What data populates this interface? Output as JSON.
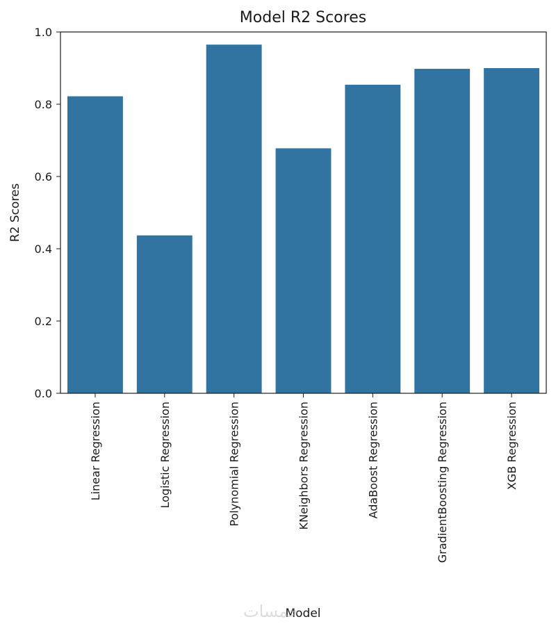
{
  "watermark": "خمسات",
  "chart_data": {
    "type": "bar",
    "title": "Model R2 Scores",
    "xlabel": "Model",
    "ylabel": "R2 Scores",
    "categories": [
      "Linear Regression",
      "Logistic Regression",
      "Polynomial Regression",
      "KNeighbors Regression",
      "AdaBoost Regression",
      "GradientBoosting Regression",
      "XGB Regression"
    ],
    "values": [
      0.822,
      0.437,
      0.965,
      0.678,
      0.854,
      0.898,
      0.9
    ],
    "ylim": [
      0,
      1.0
    ],
    "yticks": [
      0.0,
      0.2,
      0.4,
      0.6,
      0.8,
      1.0
    ],
    "ytick_labels": [
      "0.0",
      "0.2",
      "0.4",
      "0.6",
      "0.8",
      "1.0"
    ],
    "bar_color": "#3274a1",
    "grid": false,
    "x_tick_rotation": "vertical"
  }
}
